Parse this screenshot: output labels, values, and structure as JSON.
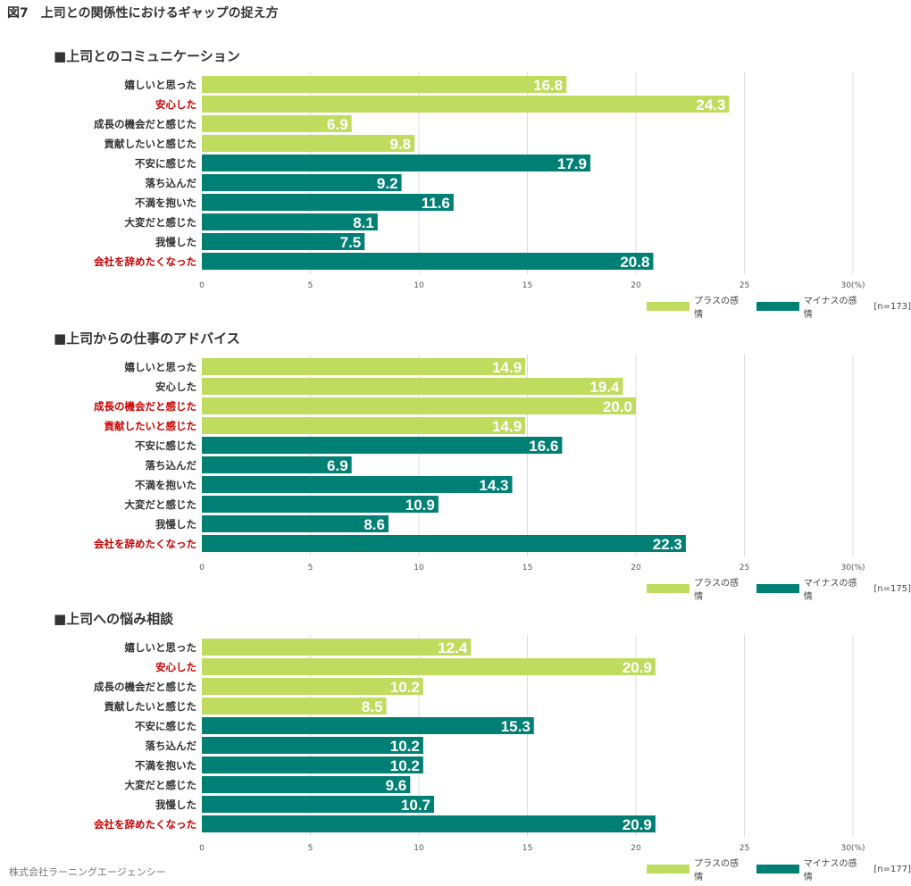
{
  "figure_title": "図7　上司との関係性におけるギャップの捉え方",
  "footer": "株式会社ラーニングエージェンシー",
  "colors": {
    "plus": "#bfdc5e",
    "minus": "#008075",
    "grid": "#dcdcdc",
    "highlight": "#cc0000",
    "label": "#333333"
  },
  "legend": {
    "plus_label": "プラスの感情",
    "minus_label": "マイナスの感情"
  },
  "chart_data": [
    {
      "type": "bar",
      "orientation": "horizontal",
      "title": "■上司とのコミュニケーション",
      "categories": [
        "嬉しいと思った",
        "安心した",
        "成長の機会だと感じた",
        "貢献したいと感じた",
        "不安に感じた",
        "落ち込んだ",
        "不満を抱いた",
        "大変だと感じた",
        "我慢した",
        "会社を辞めたくなった"
      ],
      "values": [
        16.8,
        24.3,
        6.9,
        9.8,
        17.9,
        9.2,
        11.6,
        8.1,
        7.5,
        20.8
      ],
      "value_labels": [
        "16.8",
        "24.3",
        "6.9",
        "9.8",
        "17.9",
        "9.2",
        "11.6",
        "8.1",
        "7.5",
        "20.8"
      ],
      "emotion": [
        "plus",
        "plus",
        "plus",
        "plus",
        "minus",
        "minus",
        "minus",
        "minus",
        "minus",
        "minus"
      ],
      "highlighted": [
        false,
        true,
        false,
        false,
        false,
        false,
        false,
        false,
        false,
        true
      ],
      "xlim": [
        0,
        30
      ],
      "xticks": [
        "0",
        "5",
        "10",
        "15",
        "20",
        "25",
        "30(%)"
      ],
      "n_label": "[n=173]"
    },
    {
      "type": "bar",
      "orientation": "horizontal",
      "title": "■上司からの仕事のアドバイス",
      "categories": [
        "嬉しいと思った",
        "安心した",
        "成長の機会だと感じた",
        "貢献したいと感じた",
        "不安に感じた",
        "落ち込んだ",
        "不満を抱いた",
        "大変だと感じた",
        "我慢した",
        "会社を辞めたくなった"
      ],
      "values": [
        14.9,
        19.4,
        20.0,
        14.9,
        16.6,
        6.9,
        14.3,
        10.9,
        8.6,
        22.3
      ],
      "value_labels": [
        "14.9",
        "19.4",
        "20.0",
        "14.9",
        "16.6",
        "6.9",
        "14.3",
        "10.9",
        "8.6",
        "22.3"
      ],
      "emotion": [
        "plus",
        "plus",
        "plus",
        "plus",
        "minus",
        "minus",
        "minus",
        "minus",
        "minus",
        "minus"
      ],
      "highlighted": [
        false,
        false,
        true,
        true,
        false,
        false,
        false,
        false,
        false,
        true
      ],
      "xlim": [
        0,
        30
      ],
      "xticks": [
        "0",
        "5",
        "10",
        "15",
        "20",
        "25",
        "30(%)"
      ],
      "n_label": "[n=175]"
    },
    {
      "type": "bar",
      "orientation": "horizontal",
      "title": "■上司への悩み相談",
      "categories": [
        "嬉しいと思った",
        "安心した",
        "成長の機会だと感じた",
        "貢献したいと感じた",
        "不安に感じた",
        "落ち込んだ",
        "不満を抱いた",
        "大変だと感じた",
        "我慢した",
        "会社を辞めたくなった"
      ],
      "values": [
        12.4,
        20.9,
        10.2,
        8.5,
        15.3,
        10.2,
        10.2,
        9.6,
        10.7,
        20.9
      ],
      "value_labels": [
        "12.4",
        "20.9",
        "10.2",
        "8.5",
        "15.3",
        "10.2",
        "10.2",
        "9.6",
        "10.7",
        "20.9"
      ],
      "emotion": [
        "plus",
        "plus",
        "plus",
        "plus",
        "minus",
        "minus",
        "minus",
        "minus",
        "minus",
        "minus"
      ],
      "highlighted": [
        false,
        true,
        false,
        false,
        false,
        false,
        false,
        false,
        false,
        true
      ],
      "xlim": [
        0,
        30
      ],
      "xticks": [
        "0",
        "5",
        "10",
        "15",
        "20",
        "25",
        "30(%)"
      ],
      "n_label": "[n=177]"
    }
  ]
}
